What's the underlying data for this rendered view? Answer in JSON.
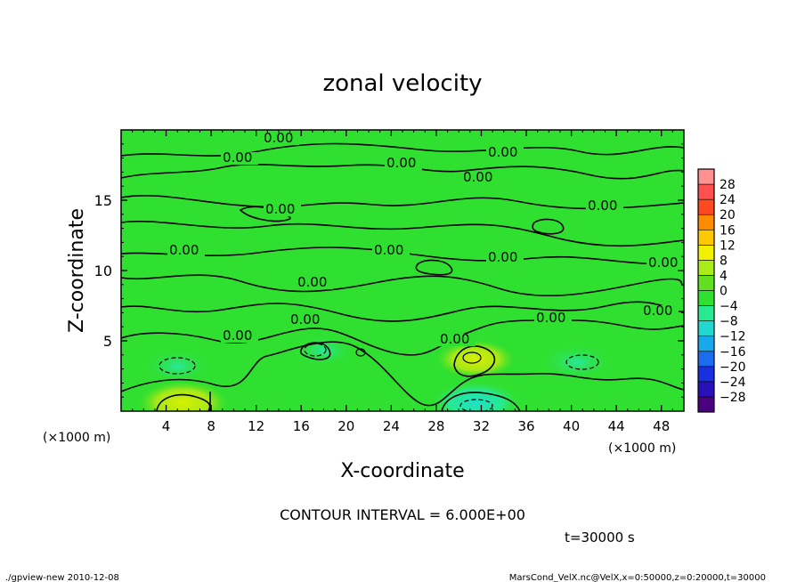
{
  "chart_data": {
    "type": "heatmap",
    "title": "zonal velocity",
    "xlabel": "X-coordinate",
    "ylabel": "Z-coordinate",
    "x_unit_left": "(×1000 m)",
    "x_unit_right": "(×1000 m)",
    "xlim": [
      0,
      50
    ],
    "ylim": [
      0,
      20
    ],
    "x_ticks": [
      4,
      8,
      12,
      16,
      20,
      24,
      28,
      32,
      36,
      40,
      44,
      48
    ],
    "y_ticks": [
      5,
      10,
      15
    ],
    "colorbar": {
      "levels": [
        -28,
        -24,
        -20,
        -16,
        -12,
        -8,
        -4,
        0,
        4,
        8,
        12,
        16,
        20,
        24,
        28
      ],
      "colors": [
        "#4b0082",
        "#2a10b8",
        "#1830e0",
        "#1c6cf0",
        "#18a8ec",
        "#20d8d0",
        "#28e890",
        "#30e030",
        "#60e020",
        "#a8ec18",
        "#f0f000",
        "#ffc800",
        "#ff8c00",
        "#ff4a20",
        "#ff5050",
        "#ff9090"
      ]
    },
    "contour_label_value": "0.00",
    "contour_interval_text": "CONTOUR INTERVAL = 6.000E+00",
    "time_text": "t=30000 s",
    "features": [
      {
        "kind": "positive",
        "x": 5.5,
        "z": 0.6,
        "value": 10
      },
      {
        "kind": "positive",
        "x": 31.5,
        "z": 3.7,
        "value": 8
      },
      {
        "kind": "negative",
        "x": 31.5,
        "z": 0.6,
        "value": -10
      },
      {
        "kind": "negative",
        "x": 5.0,
        "z": 3.2,
        "value": -6
      },
      {
        "kind": "negative",
        "x": 18.0,
        "z": 4.3,
        "value": -5
      },
      {
        "kind": "negative",
        "x": 40.5,
        "z": 3.5,
        "value": -7
      }
    ]
  },
  "footer": {
    "left": "./gpview-new 2010-12-08",
    "right": "MarsCond_VelX.nc@VelX,x=0:50000,z=0:20000,t=30000"
  }
}
